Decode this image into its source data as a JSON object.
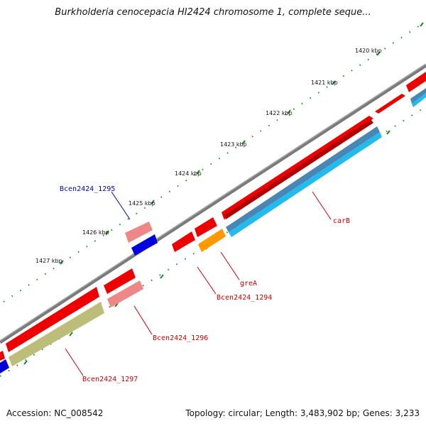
{
  "title": "Burkholderia cenocepacia HI2424 chromosome 1, complete seque...",
  "footer": {
    "accession": "Accession: NC_008542",
    "topology": "Topology: circular; Length: 3,483,902 bp; Genes: 3,233"
  },
  "ruler": {
    "ticks": [
      {
        "label": "1420 kbp"
      },
      {
        "label": "1421 kbp"
      },
      {
        "label": "1422 kbp"
      },
      {
        "label": "1423 kbp"
      },
      {
        "label": "1424 kbp"
      },
      {
        "label": "1425 kbp"
      },
      {
        "label": "1426 kbp"
      },
      {
        "label": "1427 kbp"
      }
    ]
  },
  "gene_labels": {
    "bcen2424_1295": "Bcen2424_1295",
    "carB": "carB",
    "greA": "greA",
    "bcen2424_1294": "Bcen2424_1294",
    "bcen2424_1296": "Bcen2424_1296",
    "bcen2424_1297": "Bcen2424_1297"
  },
  "colors": {
    "backbone": "#7a7a7a",
    "cds_forward": "#ee0000",
    "cds_light": "#ee8888",
    "cds_blue": "#0000dd",
    "cds_orange": "#ff9900",
    "cds_olive": "#bdbd7a",
    "cds_cyan": "#22bbee",
    "cds_steel": "#4a86b4",
    "tick_green": "#1a8a1a",
    "label_red": "#cc0000",
    "label_blue": "#0000bb"
  }
}
